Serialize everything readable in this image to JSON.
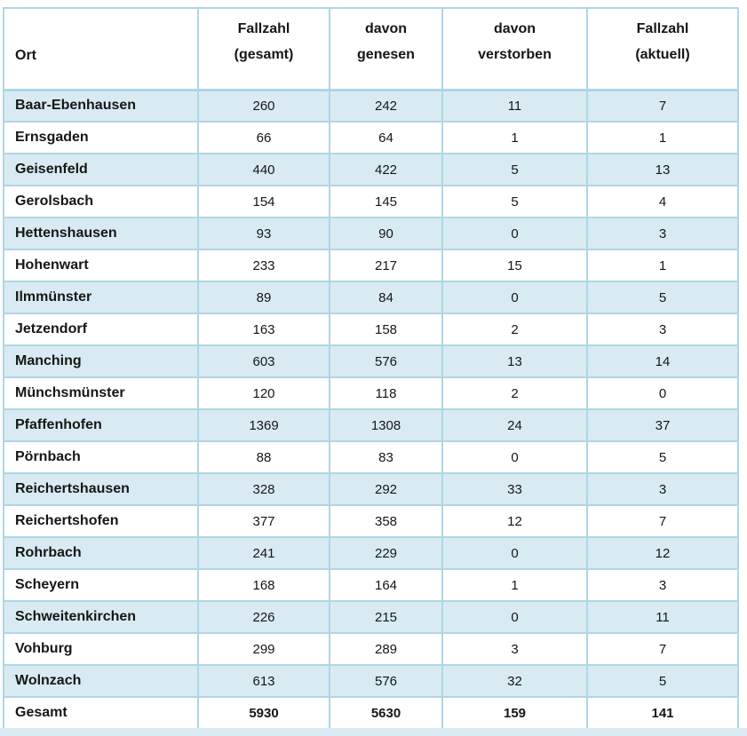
{
  "colors": {
    "row_stripe": "#d8ebf3",
    "row_plain": "#ffffff",
    "border": "#aed6e6",
    "text": "#161616",
    "page_background": "#ffffff",
    "bottom_strip": "#d8ebf3"
  },
  "table": {
    "columns": [
      {
        "id": "ort",
        "lines": [
          "Ort",
          ""
        ]
      },
      {
        "id": "fallzahl_gesamt",
        "lines": [
          "Fallzahl",
          "(gesamt)"
        ]
      },
      {
        "id": "davon_genesen",
        "lines": [
          "davon",
          "genesen"
        ]
      },
      {
        "id": "davon_verstorben",
        "lines": [
          "davon",
          "verstorben"
        ]
      },
      {
        "id": "fallzahl_aktuell",
        "lines": [
          "Fallzahl",
          "(aktuell)"
        ]
      }
    ],
    "rows": [
      {
        "ort": "Baar-Ebenhausen",
        "gesamt": 260,
        "genesen": 242,
        "verstorben": 11,
        "aktuell": 7
      },
      {
        "ort": "Ernsgaden",
        "gesamt": 66,
        "genesen": 64,
        "verstorben": 1,
        "aktuell": 1
      },
      {
        "ort": "Geisenfeld",
        "gesamt": 440,
        "genesen": 422,
        "verstorben": 5,
        "aktuell": 13
      },
      {
        "ort": "Gerolsbach",
        "gesamt": 154,
        "genesen": 145,
        "verstorben": 5,
        "aktuell": 4
      },
      {
        "ort": "Hettenshausen",
        "gesamt": 93,
        "genesen": 90,
        "verstorben": 0,
        "aktuell": 3
      },
      {
        "ort": "Hohenwart",
        "gesamt": 233,
        "genesen": 217,
        "verstorben": 15,
        "aktuell": 1
      },
      {
        "ort": "Ilmmünster",
        "gesamt": 89,
        "genesen": 84,
        "verstorben": 0,
        "aktuell": 5
      },
      {
        "ort": "Jetzendorf",
        "gesamt": 163,
        "genesen": 158,
        "verstorben": 2,
        "aktuell": 3
      },
      {
        "ort": "Manching",
        "gesamt": 603,
        "genesen": 576,
        "verstorben": 13,
        "aktuell": 14
      },
      {
        "ort": "Münchsmünster",
        "gesamt": 120,
        "genesen": 118,
        "verstorben": 2,
        "aktuell": 0
      },
      {
        "ort": "Pfaffenhofen",
        "gesamt": 1369,
        "genesen": 1308,
        "verstorben": 24,
        "aktuell": 37
      },
      {
        "ort": "Pörnbach",
        "gesamt": 88,
        "genesen": 83,
        "verstorben": 0,
        "aktuell": 5
      },
      {
        "ort": "Reichertshausen",
        "gesamt": 328,
        "genesen": 292,
        "verstorben": 33,
        "aktuell": 3
      },
      {
        "ort": "Reichertshofen",
        "gesamt": 377,
        "genesen": 358,
        "verstorben": 12,
        "aktuell": 7
      },
      {
        "ort": "Rohrbach",
        "gesamt": 241,
        "genesen": 229,
        "verstorben": 0,
        "aktuell": 12
      },
      {
        "ort": "Scheyern",
        "gesamt": 168,
        "genesen": 164,
        "verstorben": 1,
        "aktuell": 3
      },
      {
        "ort": "Schweitenkirchen",
        "gesamt": 226,
        "genesen": 215,
        "verstorben": 0,
        "aktuell": 11
      },
      {
        "ort": "Vohburg",
        "gesamt": 299,
        "genesen": 289,
        "verstorben": 3,
        "aktuell": 7
      },
      {
        "ort": "Wolnzach",
        "gesamt": 613,
        "genesen": 576,
        "verstorben": 32,
        "aktuell": 5
      }
    ],
    "total": {
      "ort": "Gesamt",
      "gesamt": 5930,
      "genesen": 5630,
      "verstorben": 159,
      "aktuell": 141
    }
  }
}
